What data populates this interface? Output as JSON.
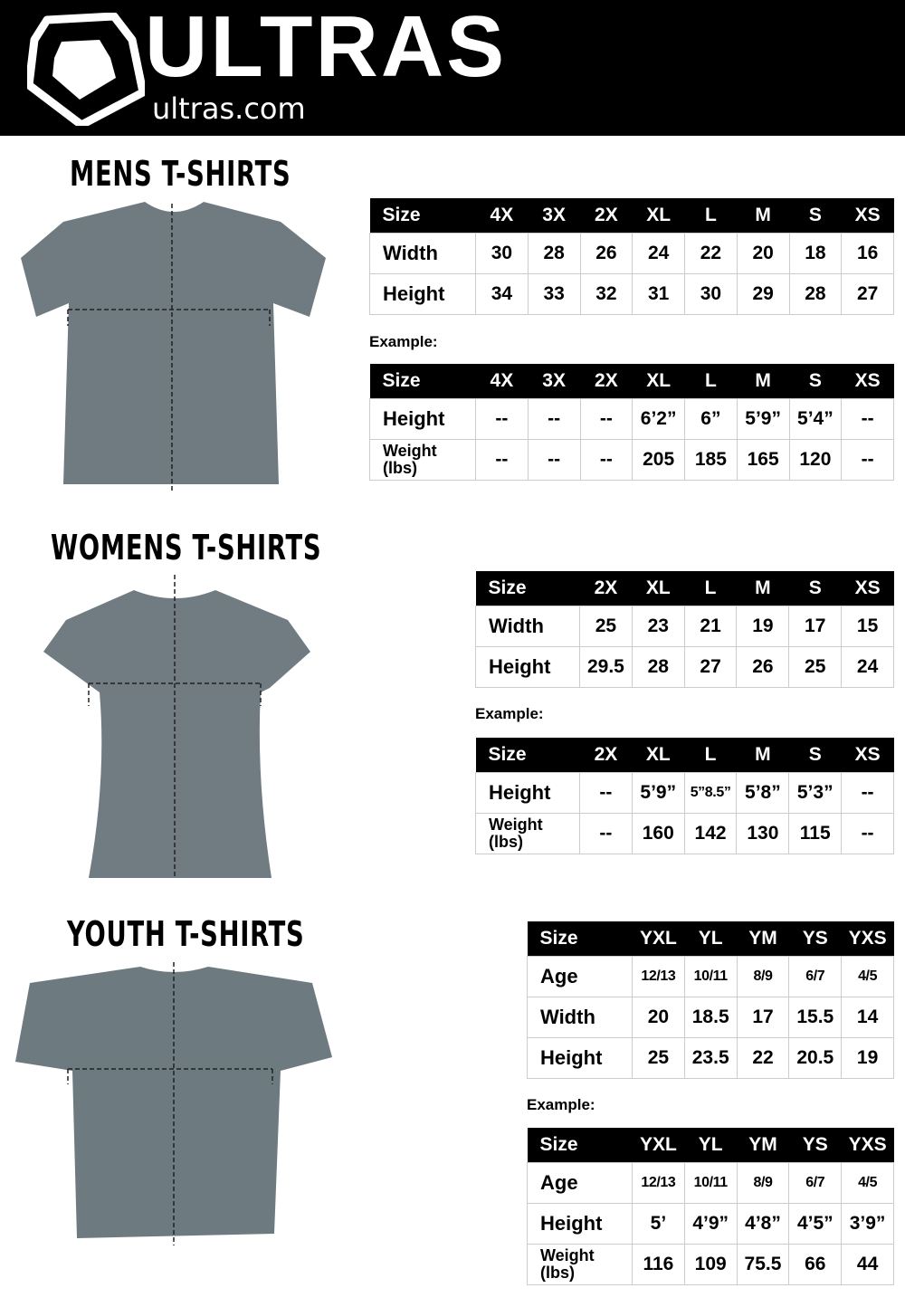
{
  "brand": {
    "name": "ULTRAS",
    "site": "ultras.com"
  },
  "example_label": "Example:",
  "sections": {
    "mens": {
      "title": "MENS T-SHIRTS",
      "measure": {
        "header": [
          "Size",
          "4X",
          "3X",
          "2X",
          "XL",
          "L",
          "M",
          "S",
          "XS"
        ],
        "rows": [
          [
            "Width",
            "30",
            "28",
            "26",
            "24",
            "22",
            "20",
            "18",
            "16"
          ],
          [
            "Height",
            "34",
            "33",
            "32",
            "31",
            "30",
            "29",
            "28",
            "27"
          ]
        ]
      },
      "example": {
        "header": [
          "Size",
          "4X",
          "3X",
          "2X",
          "XL",
          "L",
          "M",
          "S",
          "XS"
        ],
        "rows": [
          [
            "Height",
            "--",
            "--",
            "--",
            "6’2”",
            "6”",
            "5’9”",
            "5’4”",
            "--"
          ],
          [
            "Weight (lbs)",
            "--",
            "--",
            "--",
            "205",
            "185",
            "165",
            "120",
            "--"
          ]
        ]
      }
    },
    "womens": {
      "title": "WOMENS T-SHIRTS",
      "measure": {
        "header": [
          "Size",
          "2X",
          "XL",
          "L",
          "M",
          "S",
          "XS"
        ],
        "rows": [
          [
            "Width",
            "25",
            "23",
            "21",
            "19",
            "17",
            "15"
          ],
          [
            "Height",
            "29.5",
            "28",
            "27",
            "26",
            "25",
            "24"
          ]
        ]
      },
      "example": {
        "header": [
          "Size",
          "2X",
          "XL",
          "L",
          "M",
          "S",
          "XS"
        ],
        "rows": [
          [
            "Height",
            "--",
            "5’9”",
            "5”8.5”",
            "5’8”",
            "5’3”",
            "--"
          ],
          [
            "Weight (lbs)",
            "--",
            "160",
            "142",
            "130",
            "115",
            "--"
          ]
        ]
      }
    },
    "youth": {
      "title": "YOUTH T-SHIRTS",
      "measure": {
        "header": [
          "Size",
          "YXL",
          "YL",
          "YM",
          "YS",
          "YXS"
        ],
        "rows": [
          [
            "Age",
            "12/13",
            "10/11",
            "8/9",
            "6/7",
            "4/5"
          ],
          [
            "Width",
            "20",
            "18.5",
            "17",
            "15.5",
            "14"
          ],
          [
            "Height",
            "25",
            "23.5",
            "22",
            "20.5",
            "19"
          ]
        ]
      },
      "example": {
        "header": [
          "Size",
          "YXL",
          "YL",
          "YM",
          "YS",
          "YXS"
        ],
        "rows": [
          [
            "Age",
            "12/13",
            "10/11",
            "8/9",
            "6/7",
            "4/5"
          ],
          [
            "Height",
            "5’",
            "4’9”",
            "4’8”",
            "4’5”",
            "3’9”"
          ],
          [
            "Weight (lbs)",
            "116",
            "109",
            "75.5",
            "66",
            "44"
          ]
        ]
      }
    }
  },
  "colors": {
    "header_bg": "#000000",
    "shirt": "#6f7b80"
  }
}
